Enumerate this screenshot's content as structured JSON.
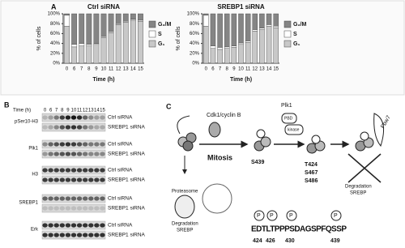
{
  "chart_data": [
    {
      "type": "bar",
      "stacked": true,
      "title": "Ctrl siRNA",
      "xlabel": "Time (h)",
      "ylabel": "% of cells",
      "categories": [
        "0",
        "6",
        "7",
        "8",
        "9",
        "10",
        "11",
        "12",
        "13",
        "14",
        "15"
      ],
      "series": [
        {
          "name": "G₁",
          "color": "#c8c8c8",
          "values": [
            75,
            33,
            35,
            35,
            38,
            52,
            62,
            78,
            83,
            87,
            85
          ]
        },
        {
          "name": "S",
          "color": "#ffffff",
          "values": [
            22,
            5,
            5,
            3,
            2,
            2,
            2,
            2,
            2,
            2,
            2
          ]
        },
        {
          "name": "G₂/M",
          "color": "#858585",
          "values": [
            3,
            62,
            60,
            62,
            60,
            46,
            36,
            20,
            15,
            11,
            13
          ]
        }
      ],
      "ylim": [
        0,
        100
      ],
      "yticks": [
        {
          "value": 0,
          "label": "0%"
        },
        {
          "value": 20,
          "label": "20%"
        },
        {
          "value": 40,
          "label": "40%"
        },
        {
          "value": 60,
          "label": "60%"
        },
        {
          "value": 80,
          "label": "80%"
        },
        {
          "value": 100,
          "label": "100%"
        }
      ]
    },
    {
      "type": "bar",
      "stacked": true,
      "title": "SREBP1 siRNA",
      "xlabel": "Time (h)",
      "ylabel": "% of cells",
      "categories": [
        "0",
        "6",
        "7",
        "8",
        "9",
        "10",
        "11",
        "12",
        "13",
        "14",
        "15"
      ],
      "series": [
        {
          "name": "G₁",
          "color": "#c8c8c8",
          "values": [
            75,
            30,
            28,
            30,
            32,
            38,
            42,
            65,
            68,
            75,
            72
          ]
        },
        {
          "name": "S",
          "color": "#ffffff",
          "values": [
            22,
            5,
            4,
            3,
            3,
            3,
            3,
            3,
            3,
            3,
            3
          ]
        },
        {
          "name": "G₂/M",
          "color": "#858585",
          "values": [
            3,
            65,
            68,
            67,
            65,
            59,
            55,
            32,
            29,
            22,
            25
          ]
        }
      ],
      "ylim": [
        0,
        100
      ],
      "yticks": [
        {
          "value": 0,
          "label": "0%"
        },
        {
          "value": 20,
          "label": "20%"
        },
        {
          "value": 40,
          "label": "40%"
        },
        {
          "value": 60,
          "label": "60%"
        },
        {
          "value": 80,
          "label": "80%"
        },
        {
          "value": 100,
          "label": "100%"
        }
      ]
    }
  ],
  "panels": {
    "a": "A",
    "b": "B",
    "c": "C"
  },
  "blot": {
    "time_label": "Time (h)",
    "lanes": [
      0,
      6,
      7,
      8,
      9,
      10,
      11,
      12,
      13,
      14,
      15
    ],
    "rows": [
      {
        "protein": "pSer10-H3",
        "conditions": [
          "Ctrl siRNA",
          "SREBP1 siRNA"
        ]
      },
      {
        "protein": "Plk1",
        "conditions": [
          "Ctrl siRNA",
          "SREBP1 siRNA"
        ]
      },
      {
        "protein": "H3",
        "conditions": [
          "Ctrl siRNA",
          "SREBP1 siRNA"
        ]
      },
      {
        "protein": "SREBP1",
        "conditions": [
          "Ctrl siRNA",
          "SREBP1 siRNA"
        ]
      },
      {
        "protein": "Erk",
        "conditions": [
          "Ctrl siRNA",
          "SREBP1 siRNA"
        ]
      }
    ]
  },
  "diagram": {
    "cdk": "Cdk1/cyclin B",
    "plk1": "Plk1",
    "pbd": "PBD",
    "kinase": "kinase",
    "mitosis": "Mitosis",
    "proteasome": "Proteasome",
    "degradation_left": [
      "Degradation",
      "SREBP"
    ],
    "degradation_right": [
      "Degradation",
      "SREBP"
    ],
    "s439": "S439",
    "sites": [
      "T424",
      "S467",
      "S486"
    ],
    "fbw7": "Fbw7",
    "phospho": "P",
    "sequence": "EDTLTPPPSDAGSPFQSSP",
    "positions": [
      424,
      426,
      430,
      439
    ]
  }
}
